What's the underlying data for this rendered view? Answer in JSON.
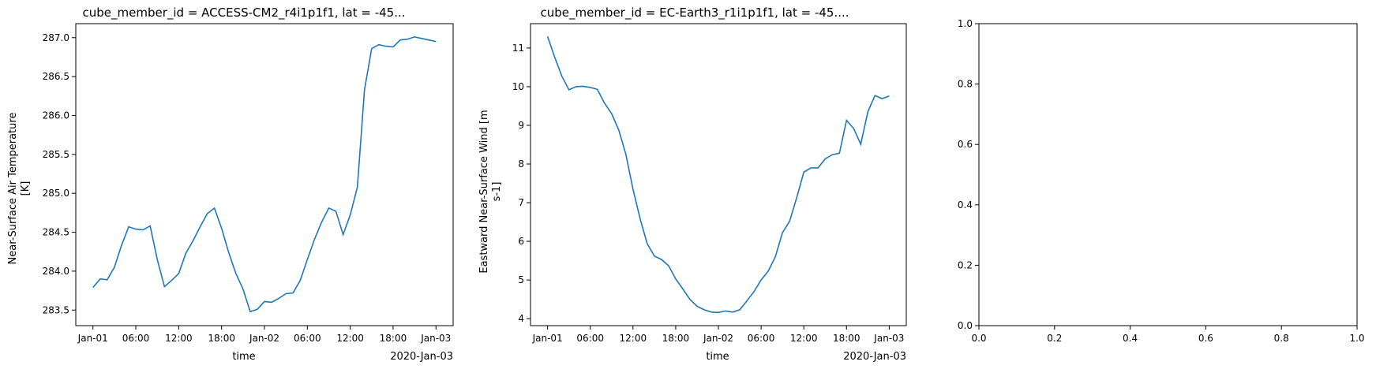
{
  "chart_data": [
    {
      "type": "line",
      "title": "cube_member_id = ACCESS-CM2_r4i1p1f1, lat = -45...",
      "xlabel": "time",
      "ylabel": [
        "Near-Surface Air Temperature",
        "[K]"
      ],
      "x_ticks": [
        "Jan-01",
        "06:00",
        "12:00",
        "18:00",
        "Jan-02",
        "06:00",
        "12:00",
        "18:00",
        "Jan-03"
      ],
      "x_offset_label": "2020-Jan-03",
      "y_ticks": [
        "283.5",
        "284.0",
        "284.5",
        "285.0",
        "285.5",
        "286.0",
        "286.5",
        "287.0"
      ],
      "ylim": [
        283.3,
        287.18
      ],
      "grid": false,
      "color": "#1f77b4",
      "x": [
        "2020-01-01 00:00",
        "2020-01-01 01:00",
        "2020-01-01 02:00",
        "2020-01-01 03:00",
        "2020-01-01 04:00",
        "2020-01-01 05:00",
        "2020-01-01 06:00",
        "2020-01-01 07:00",
        "2020-01-01 08:00",
        "2020-01-01 09:00",
        "2020-01-01 10:00",
        "2020-01-01 11:00",
        "2020-01-01 12:00",
        "2020-01-01 13:00",
        "2020-01-01 14:00",
        "2020-01-01 15:00",
        "2020-01-01 16:00",
        "2020-01-01 17:00",
        "2020-01-01 18:00",
        "2020-01-01 19:00",
        "2020-01-01 20:00",
        "2020-01-01 21:00",
        "2020-01-01 22:00",
        "2020-01-01 23:00",
        "2020-01-02 00:00",
        "2020-01-02 01:00",
        "2020-01-02 02:00",
        "2020-01-02 03:00",
        "2020-01-02 04:00",
        "2020-01-02 05:00",
        "2020-01-02 06:00",
        "2020-01-02 07:00",
        "2020-01-02 08:00",
        "2020-01-02 09:00",
        "2020-01-02 10:00",
        "2020-01-02 11:00",
        "2020-01-02 12:00",
        "2020-01-02 13:00",
        "2020-01-02 14:00",
        "2020-01-02 15:00",
        "2020-01-02 16:00",
        "2020-01-02 17:00",
        "2020-01-02 18:00",
        "2020-01-02 19:00",
        "2020-01-02 20:00",
        "2020-01-02 21:00",
        "2020-01-02 22:00",
        "2020-01-02 23:00",
        "2020-01-03 00:00"
      ],
      "values": [
        283.79,
        283.9,
        283.89,
        284.05,
        284.33,
        284.57,
        284.54,
        284.53,
        284.58,
        284.15,
        283.8,
        283.88,
        283.97,
        284.23,
        284.39,
        284.57,
        284.74,
        284.81,
        284.55,
        284.24,
        283.97,
        283.77,
        283.48,
        283.51,
        283.61,
        283.6,
        283.65,
        283.71,
        283.72,
        283.88,
        284.15,
        284.41,
        284.63,
        284.81,
        284.77,
        284.47,
        284.72,
        285.08,
        286.33,
        286.86,
        286.91,
        286.89,
        286.88,
        286.97,
        286.98,
        287.01,
        286.99,
        286.97,
        286.95
      ]
    },
    {
      "type": "line",
      "title": "cube_member_id = EC-Earth3_r1i1p1f1, lat = -45....",
      "xlabel": "time",
      "ylabel": [
        "Eastward Near-Surface Wind [m",
        "s-1]"
      ],
      "x_ticks": [
        "Jan-01",
        "06:00",
        "12:00",
        "18:00",
        "Jan-02",
        "06:00",
        "12:00",
        "18:00",
        "Jan-03"
      ],
      "x_offset_label": "2020-Jan-03",
      "y_ticks": [
        "4",
        "5",
        "6",
        "7",
        "8",
        "9",
        "10",
        "11"
      ],
      "ylim": [
        3.82,
        11.63
      ],
      "grid": false,
      "color": "#1f77b4",
      "x": [
        "2020-01-01 00:00",
        "2020-01-01 01:00",
        "2020-01-01 02:00",
        "2020-01-01 03:00",
        "2020-01-01 04:00",
        "2020-01-01 05:00",
        "2020-01-01 06:00",
        "2020-01-01 07:00",
        "2020-01-01 08:00",
        "2020-01-01 09:00",
        "2020-01-01 10:00",
        "2020-01-01 11:00",
        "2020-01-01 12:00",
        "2020-01-01 13:00",
        "2020-01-01 14:00",
        "2020-01-01 15:00",
        "2020-01-01 16:00",
        "2020-01-01 17:00",
        "2020-01-01 18:00",
        "2020-01-01 19:00",
        "2020-01-01 20:00",
        "2020-01-01 21:00",
        "2020-01-01 22:00",
        "2020-01-01 23:00",
        "2020-01-02 00:00",
        "2020-01-02 01:00",
        "2020-01-02 02:00",
        "2020-01-02 03:00",
        "2020-01-02 04:00",
        "2020-01-02 05:00",
        "2020-01-02 06:00",
        "2020-01-02 07:00",
        "2020-01-02 08:00",
        "2020-01-02 09:00",
        "2020-01-02 10:00",
        "2020-01-02 11:00",
        "2020-01-02 12:00",
        "2020-01-02 13:00",
        "2020-01-02 14:00",
        "2020-01-02 15:00",
        "2020-01-02 16:00",
        "2020-01-02 17:00",
        "2020-01-02 18:00",
        "2020-01-02 19:00",
        "2020-01-02 20:00",
        "2020-01-02 21:00",
        "2020-01-02 22:00",
        "2020-01-02 23:00",
        "2020-01-03 00:00"
      ],
      "values": [
        11.3,
        10.76,
        10.27,
        9.92,
        10.0,
        10.01,
        9.98,
        9.93,
        9.57,
        9.3,
        8.88,
        8.25,
        7.35,
        6.59,
        5.94,
        5.62,
        5.53,
        5.37,
        5.03,
        4.77,
        4.5,
        4.32,
        4.23,
        4.17,
        4.16,
        4.2,
        4.17,
        4.23,
        4.46,
        4.7,
        5.0,
        5.23,
        5.6,
        6.22,
        6.52,
        7.13,
        7.79,
        7.9,
        7.9,
        8.13,
        8.24,
        8.28,
        9.13,
        8.92,
        8.51,
        9.35,
        9.77,
        9.69,
        9.76
      ]
    },
    {
      "type": "line",
      "title": "",
      "xlabel": "",
      "ylabel": "",
      "x_ticks": [
        "0.0",
        "0.2",
        "0.4",
        "0.6",
        "0.8",
        "1.0"
      ],
      "y_ticks": [
        "0.0",
        "0.2",
        "0.4",
        "0.6",
        "0.8",
        "1.0"
      ],
      "xlim": [
        0,
        1
      ],
      "ylim": [
        0,
        1
      ],
      "grid": false,
      "series": []
    }
  ]
}
